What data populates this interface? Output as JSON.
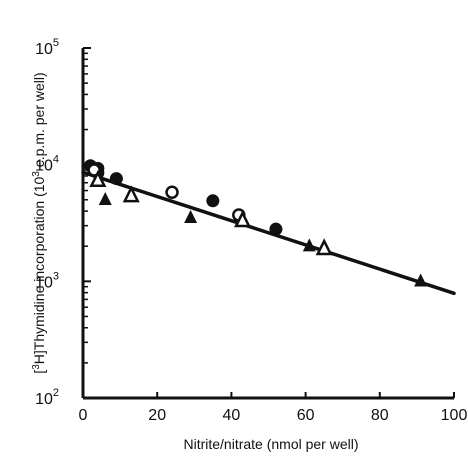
{
  "chart_data": {
    "type": "scatter",
    "xlabel": "Nitrite/nitrate (nmol per well)",
    "ylabel_parts": {
      "bracket_open": "[",
      "isotope": "3",
      "rest": "H]Thymidine incorporation (10",
      "exp": "3",
      "tail": " c.p.m. per well)"
    },
    "x_scale": "linear",
    "y_scale": "log",
    "xlim": [
      0,
      100
    ],
    "ylim": [
      100,
      100000
    ],
    "x_ticks": [
      0,
      20,
      40,
      60,
      80,
      100
    ],
    "x_tick_labels": [
      "0",
      "20",
      "40",
      "60",
      "80",
      "100"
    ],
    "y_ticks": [
      100,
      1000,
      10000,
      100000
    ],
    "y_tick_labels": [
      {
        "base": "10",
        "exp": "2"
      },
      {
        "base": "10",
        "exp": "3"
      },
      {
        "base": "10",
        "exp": "4"
      },
      {
        "base": "10",
        "exp": "5"
      }
    ],
    "grid": false,
    "legend": "none",
    "series": [
      {
        "marker": "filled-circle",
        "points": [
          [
            2,
            9800
          ],
          [
            4,
            9300
          ],
          [
            4,
            8500
          ],
          [
            9,
            7600
          ],
          [
            35,
            4900
          ],
          [
            52,
            2800
          ]
        ]
      },
      {
        "marker": "open-circle",
        "points": [
          [
            3,
            9000
          ],
          [
            24,
            5800
          ],
          [
            42,
            3700
          ]
        ]
      },
      {
        "marker": "filled-triangle",
        "points": [
          [
            6,
            5000
          ],
          [
            29,
            3500
          ],
          [
            61,
            2000
          ],
          [
            91,
            1000
          ]
        ]
      },
      {
        "marker": "open-triangle",
        "points": [
          [
            4,
            7300
          ],
          [
            13,
            5400
          ],
          [
            43,
            3300
          ],
          [
            65,
            1900
          ]
        ]
      }
    ],
    "fit_line": {
      "x": [
        0,
        100
      ],
      "y": [
        8600,
        790
      ]
    },
    "colors": {
      "ink": "#111111",
      "background": "#ffffff"
    }
  }
}
